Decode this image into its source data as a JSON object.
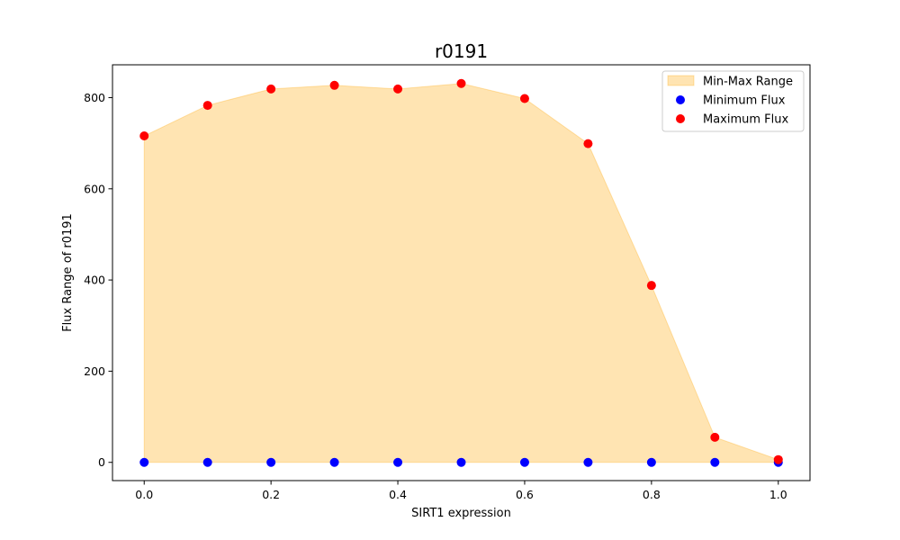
{
  "chart_data": {
    "type": "scatter",
    "title": "r0191",
    "xlabel": "SIRT1 expression",
    "ylabel": "Flux Range of r0191",
    "xlim": [
      -0.05,
      1.05
    ],
    "ylim": [
      -40,
      872
    ],
    "xticks": [
      0.0,
      0.2,
      0.4,
      0.6,
      0.8,
      1.0
    ],
    "xtick_labels": [
      "0.0",
      "0.2",
      "0.4",
      "0.6",
      "0.8",
      "1.0"
    ],
    "yticks": [
      0,
      200,
      400,
      600,
      800
    ],
    "ytick_labels": [
      "0",
      "200",
      "400",
      "600",
      "800"
    ],
    "x": [
      0.0,
      0.1,
      0.2,
      0.3,
      0.4,
      0.5,
      0.6,
      0.7,
      0.8,
      0.9,
      1.0
    ],
    "series": [
      {
        "name": "Minimum Flux",
        "kind": "scatter",
        "color": "#0000ff",
        "values": [
          0,
          0,
          0,
          0,
          0,
          0,
          0,
          0,
          0,
          0,
          0
        ]
      },
      {
        "name": "Maximum Flux",
        "kind": "scatter",
        "color": "#ff0000",
        "values": [
          716,
          783,
          819,
          827,
          819,
          831,
          798,
          699,
          388,
          55,
          6
        ]
      }
    ],
    "fill": {
      "name": "Min-Max Range",
      "color": "#ffa500",
      "opacity": 0.3
    },
    "legend": {
      "position": "upper right",
      "entries": [
        "Min-Max Range",
        "Minimum Flux",
        "Maximum Flux"
      ]
    },
    "grid": false
  }
}
